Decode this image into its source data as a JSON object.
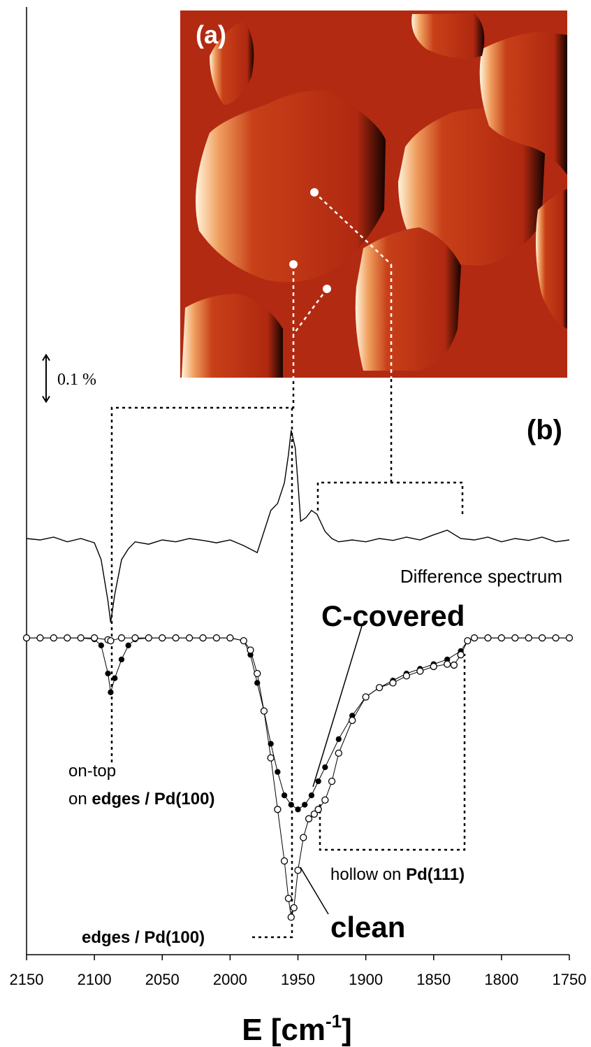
{
  "chart_data": {
    "type": "line",
    "panel_labels": [
      "(a)",
      "(b)"
    ],
    "xlabel": [
      "E [cm",
      "-1",
      "]"
    ],
    "xlim": [
      2150,
      1750
    ],
    "xticks": [
      2150,
      2100,
      2050,
      2000,
      1950,
      1900,
      1850,
      1800,
      1750
    ],
    "ylim": [
      0,
      2
    ],
    "scale_bar": {
      "value": 0.1,
      "label": "0.1 %"
    },
    "annotations": {
      "on_top": "on-top",
      "on_edges": [
        "on ",
        "edges / Pd(100)"
      ],
      "hollow": [
        "hollow on ",
        "Pd(111)"
      ],
      "edges": "edges / Pd(100)"
    },
    "series": [
      {
        "name": "Difference spectrum",
        "color": "#000000",
        "marker": "none",
        "x": [
          2150,
          2140,
          2130,
          2120,
          2110,
          2100,
          2095,
          2090,
          2088,
          2085,
          2080,
          2075,
          2070,
          2060,
          2050,
          2040,
          2030,
          2020,
          2010,
          2000,
          1990,
          1980,
          1975,
          1970,
          1965,
          1960,
          1957,
          1955,
          1952,
          1950,
          1948,
          1944,
          1940,
          1936,
          1930,
          1925,
          1920,
          1910,
          1900,
          1890,
          1880,
          1870,
          1860,
          1850,
          1840,
          1830,
          1820,
          1810,
          1800,
          1790,
          1780,
          1770,
          1760,
          1750
        ],
        "values": [
          0.888,
          0.885,
          0.891,
          0.881,
          0.888,
          0.879,
          0.843,
          0.754,
          0.709,
          0.769,
          0.843,
          0.866,
          0.881,
          0.876,
          0.885,
          0.881,
          0.888,
          0.884,
          0.879,
          0.885,
          0.873,
          0.858,
          0.903,
          0.948,
          0.963,
          1.007,
          1.067,
          1.119,
          1.082,
          1.007,
          0.925,
          0.933,
          0.948,
          0.94,
          0.903,
          0.888,
          0.881,
          0.885,
          0.881,
          0.888,
          0.884,
          0.891,
          0.885,
          0.896,
          0.906,
          0.888,
          0.885,
          0.891,
          0.881,
          0.888,
          0.884,
          0.891,
          0.881,
          0.885
        ]
      },
      {
        "name": "C-covered",
        "color": "#000000",
        "marker": "filled",
        "x": [
          2150,
          2140,
          2130,
          2120,
          2110,
          2100,
          2095,
          2090,
          2088,
          2085,
          2080,
          2075,
          2070,
          2060,
          2050,
          2040,
          2030,
          2020,
          2010,
          2000,
          1990,
          1985,
          1980,
          1975,
          1970,
          1965,
          1960,
          1955,
          1950,
          1945,
          1940,
          1935,
          1930,
          1920,
          1910,
          1900,
          1890,
          1880,
          1870,
          1860,
          1850,
          1840,
          1830,
          1825,
          1820,
          1810,
          1800,
          1790,
          1780,
          1770,
          1760,
          1750
        ],
        "values": [
          0.676,
          0.676,
          0.676,
          0.676,
          0.676,
          0.673,
          0.66,
          0.6,
          0.56,
          0.59,
          0.63,
          0.66,
          0.673,
          0.676,
          0.676,
          0.676,
          0.676,
          0.676,
          0.676,
          0.676,
          0.67,
          0.64,
          0.58,
          0.52,
          0.45,
          0.39,
          0.34,
          0.32,
          0.31,
          0.32,
          0.34,
          0.37,
          0.4,
          0.46,
          0.51,
          0.55,
          0.57,
          0.585,
          0.6,
          0.61,
          0.62,
          0.63,
          0.648,
          0.67,
          0.676,
          0.676,
          0.676,
          0.676,
          0.676,
          0.676,
          0.676,
          0.676
        ]
      },
      {
        "name": "clean",
        "color": "#000000",
        "marker": "open",
        "x": [
          2150,
          2140,
          2130,
          2120,
          2110,
          2100,
          2090,
          2088,
          2080,
          2070,
          2060,
          2050,
          2040,
          2030,
          2020,
          2010,
          2000,
          1990,
          1985,
          1980,
          1975,
          1970,
          1965,
          1960,
          1957,
          1955,
          1953,
          1950,
          1946,
          1942,
          1938,
          1935,
          1930,
          1925,
          1920,
          1910,
          1900,
          1890,
          1880,
          1870,
          1860,
          1850,
          1840,
          1835,
          1830,
          1825,
          1820,
          1810,
          1800,
          1790,
          1780,
          1770,
          1760,
          1750
        ],
        "values": [
          0.676,
          0.676,
          0.676,
          0.676,
          0.676,
          0.676,
          0.672,
          0.67,
          0.676,
          0.676,
          0.676,
          0.676,
          0.676,
          0.676,
          0.676,
          0.676,
          0.676,
          0.67,
          0.65,
          0.6,
          0.52,
          0.42,
          0.31,
          0.2,
          0.12,
          0.08,
          0.1,
          0.18,
          0.25,
          0.29,
          0.3,
          0.31,
          0.33,
          0.37,
          0.43,
          0.5,
          0.55,
          0.57,
          0.58,
          0.595,
          0.605,
          0.615,
          0.62,
          0.618,
          0.64,
          0.67,
          0.676,
          0.676,
          0.676,
          0.676,
          0.676,
          0.676,
          0.676,
          0.676
        ]
      }
    ]
  }
}
